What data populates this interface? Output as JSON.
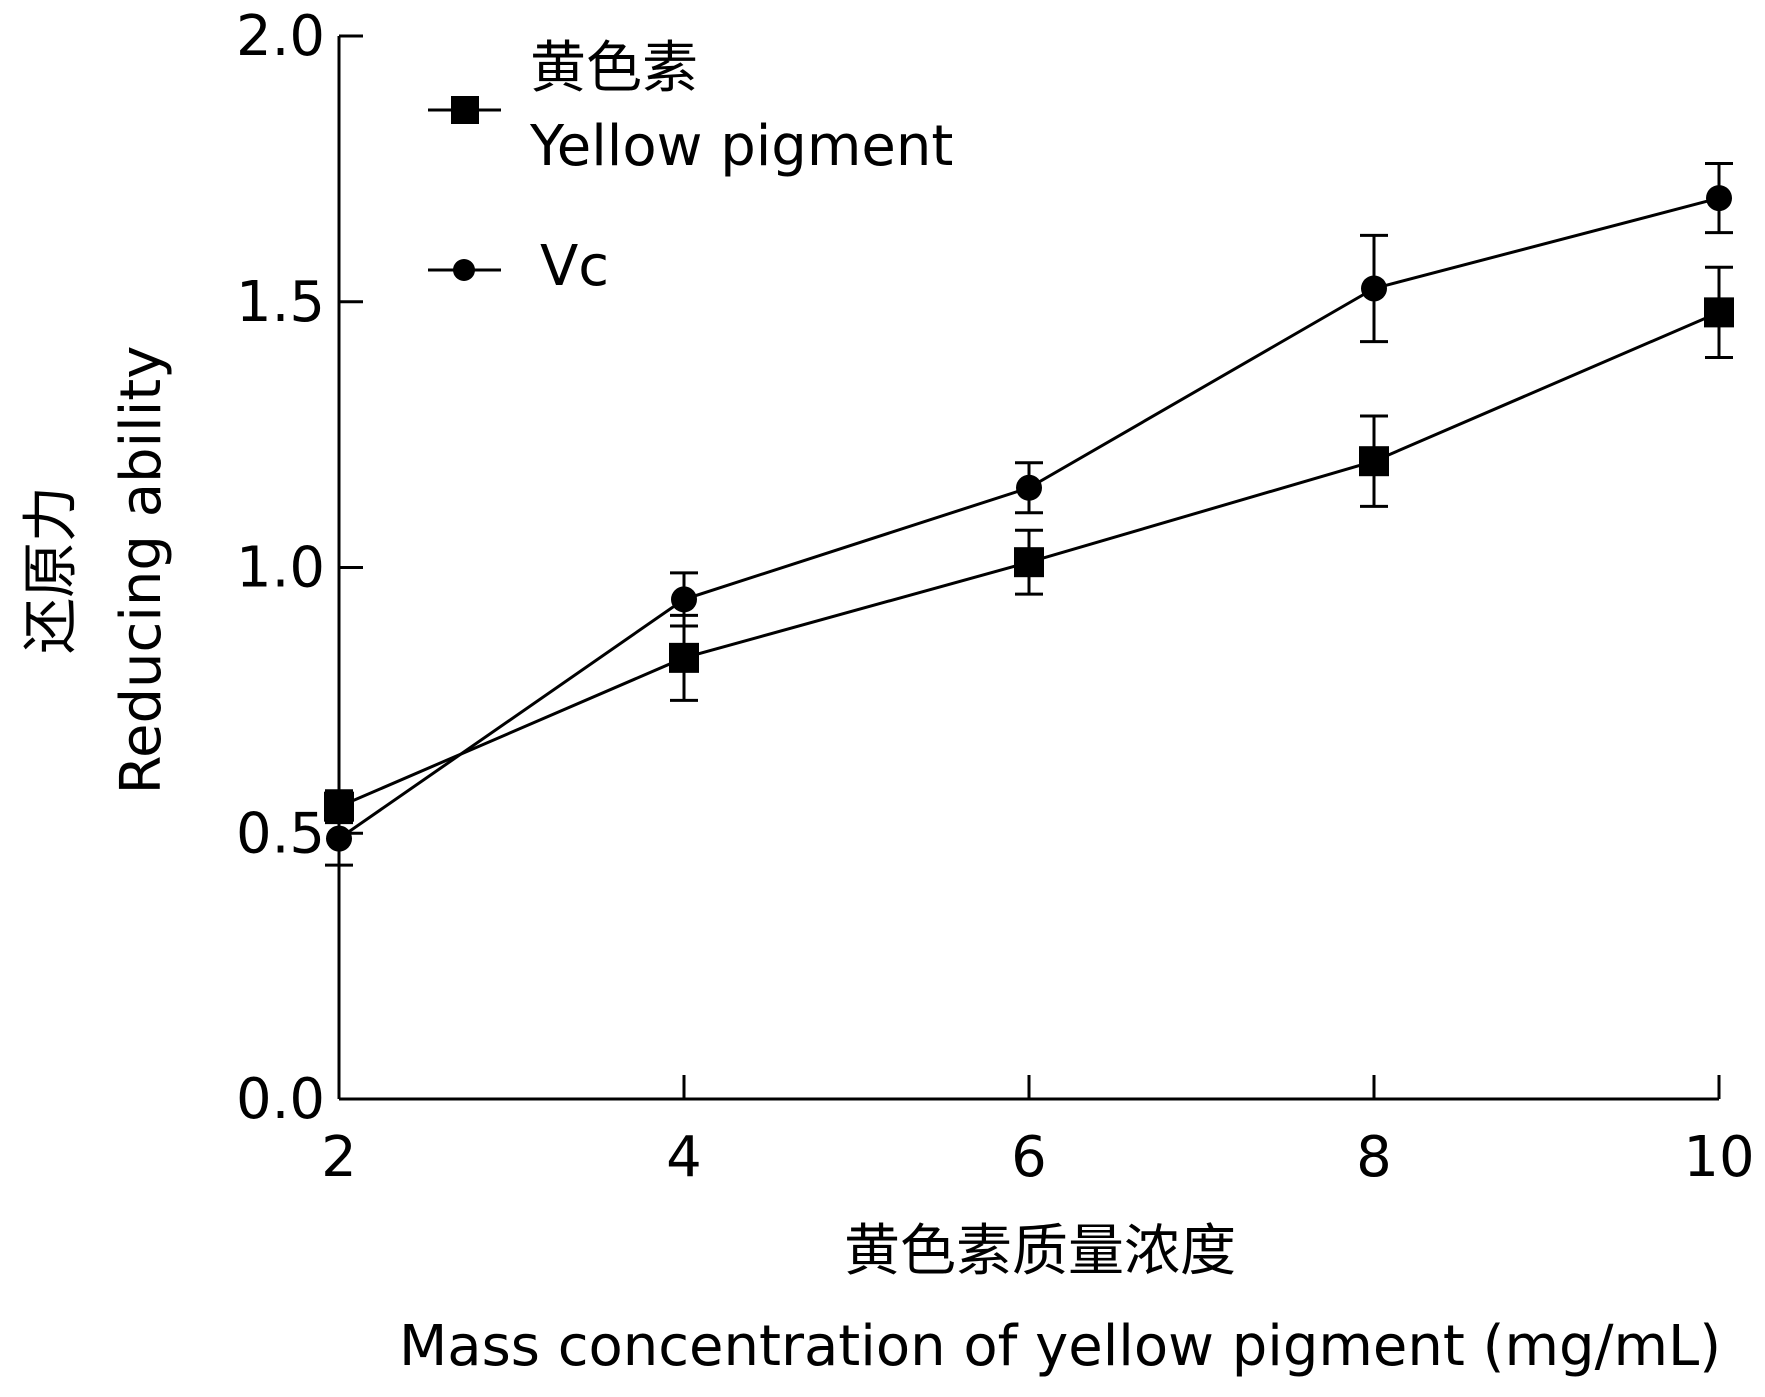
{
  "chart_data": {
    "type": "line",
    "x_label": [
      "黄色素质量浓度",
      "Mass concentration of yellow pigment (mg/mL)"
    ],
    "y_label": [
      "还原力",
      "Reducing ability"
    ],
    "x": [
      2,
      4,
      6,
      8,
      10
    ],
    "series": [
      {
        "name_cn": "黄色素",
        "name": "Yellow pigment",
        "color": "#000000",
        "marker": "square",
        "values": [
          0.55,
          0.83,
          1.01,
          1.2,
          1.48
        ],
        "errors": [
          0.03,
          0.08,
          0.06,
          0.085,
          0.085
        ]
      },
      {
        "name": "Vc",
        "color": "#000000",
        "marker": "circle",
        "values": [
          0.49,
          0.94,
          1.15,
          1.525,
          1.695
        ],
        "errors": [
          0.05,
          0.05,
          0.047,
          0.1,
          0.065
        ]
      }
    ],
    "xlim": [
      2,
      10
    ],
    "xticks": [
      2,
      4,
      6,
      8,
      10
    ],
    "ylim": [
      0,
      2
    ],
    "yticks": [
      {
        "value": 0,
        "label": "0.0"
      },
      {
        "value": 0.5,
        "label": "0.5"
      },
      {
        "value": 1,
        "label": "1.0"
      },
      {
        "value": 1.5,
        "label": "1.5"
      },
      {
        "value": 2,
        "label": "2.0"
      }
    ],
    "grid": false
  }
}
